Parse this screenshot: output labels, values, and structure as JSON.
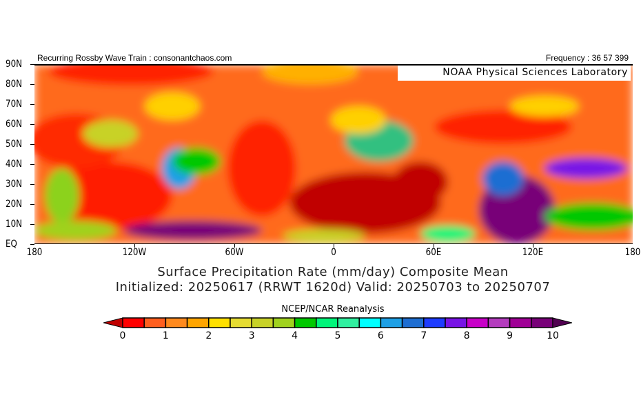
{
  "header": {
    "left": "Recurring Rossby Wave Train : consonantchaos.com",
    "right": "Frequency : 36 57 399"
  },
  "map": {
    "overlay_label": "NOAA Physical Sciences Laboratory",
    "lat_labels": [
      "90N",
      "80N",
      "70N",
      "60N",
      "50N",
      "40N",
      "30N",
      "20N",
      "10N",
      "EQ"
    ],
    "lon_labels": [
      "180",
      "120W",
      "60W",
      "0",
      "60E",
      "120E",
      "180"
    ]
  },
  "title": {
    "line1": "Surface Precipitation Rate (mm/day) Composite Mean",
    "line2": "Initialized: 20250617 (RRWT 1620d) Valid: 20250703 to 20250707"
  },
  "colorbar": {
    "label": "NCEP/NCAR Reanalysis",
    "ticks": [
      "0",
      "1",
      "2",
      "3",
      "4",
      "5",
      "6",
      "7",
      "8",
      "9",
      "10"
    ],
    "under_color": "#c00000",
    "over_color": "#500050",
    "colors": [
      "#ff0000",
      "#ff5f1f",
      "#ff8a1e",
      "#ffa500",
      "#ffe000",
      "#e6dc32",
      "#c8d228",
      "#a0d21e",
      "#00c800",
      "#00f57a",
      "#30f0a0",
      "#00ffff",
      "#1ea0e6",
      "#1e6ed2",
      "#1e3cff",
      "#7814e6",
      "#c800c8",
      "#b43cbe",
      "#a00096",
      "#780078"
    ]
  }
}
